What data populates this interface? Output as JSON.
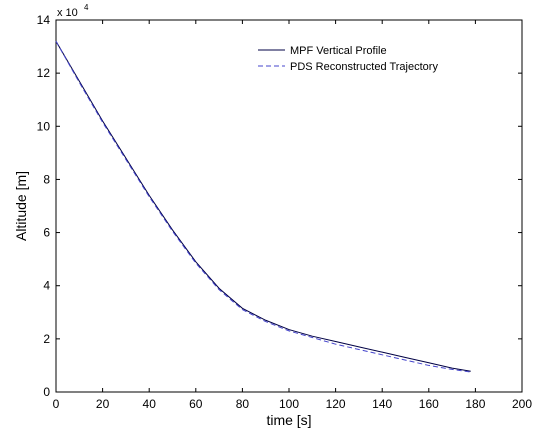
{
  "chart_data": {
    "type": "line",
    "xlabel": "time [s]",
    "ylabel": "Altitude  [m]",
    "y_scale_multiplier": "x 10",
    "y_scale_exponent": "4",
    "xlim": [
      0,
      200
    ],
    "ylim": [
      0,
      14
    ],
    "xticks": [
      0,
      20,
      40,
      60,
      80,
      100,
      120,
      140,
      160,
      180,
      200
    ],
    "yticks": [
      0,
      2,
      4,
      6,
      8,
      10,
      12,
      14
    ],
    "grid": false,
    "legend_position": "top-right",
    "series": [
      {
        "name": "MPF Vertical Profile",
        "style": "solid",
        "color": "#000044",
        "x": [
          0,
          10,
          20,
          30,
          40,
          50,
          60,
          70,
          80,
          90,
          100,
          110,
          120,
          130,
          140,
          150,
          160,
          170,
          178
        ],
        "y": [
          13.2,
          11.7,
          10.2,
          8.8,
          7.4,
          6.1,
          4.9,
          3.9,
          3.15,
          2.7,
          2.35,
          2.1,
          1.9,
          1.7,
          1.5,
          1.3,
          1.1,
          0.9,
          0.78
        ]
      },
      {
        "name": "PDS Reconstructed Trajectory",
        "style": "dashed",
        "color": "#4444cc",
        "x": [
          0,
          10,
          20,
          30,
          40,
          50,
          60,
          70,
          80,
          90,
          100,
          110,
          120,
          130,
          140,
          150,
          160,
          170,
          178
        ],
        "y": [
          13.2,
          11.65,
          10.15,
          8.75,
          7.35,
          6.05,
          4.85,
          3.85,
          3.1,
          2.65,
          2.3,
          2.05,
          1.8,
          1.6,
          1.4,
          1.2,
          1.0,
          0.85,
          0.75
        ]
      }
    ]
  }
}
